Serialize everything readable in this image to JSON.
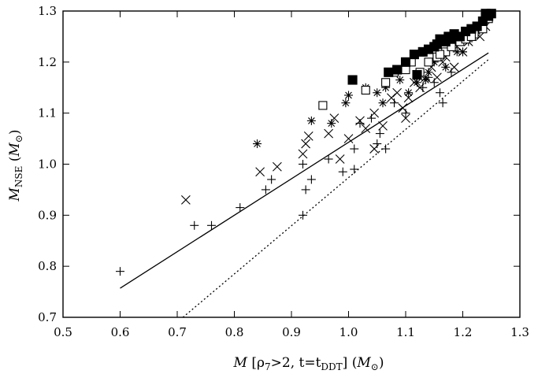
{
  "chart_data": {
    "type": "scatter",
    "xlabel": {
      "main": "M",
      "bracket_open": " [",
      "rho": "ρ",
      "rho_sub": "7",
      "cond": ">2, t=t",
      "t_sub": "DDT",
      "bracket_close": "] (",
      "unit": "M",
      "unit_sub": "⊙",
      "close": ")"
    },
    "ylabel": {
      "main": "M",
      "main_sub": "NSE",
      "open": " (",
      "unit": "M",
      "unit_sub": "⊙",
      "close": ")"
    },
    "xlim": [
      0.5,
      1.3
    ],
    "ylim": [
      0.7,
      1.3
    ],
    "xticks": [
      0.5,
      0.6,
      0.7,
      0.8,
      0.9,
      1.0,
      1.1,
      1.2,
      1.3
    ],
    "xtick_labels": [
      "0.5",
      "0.6",
      "0.7",
      "0.8",
      "0.9",
      "1.0",
      "1.1",
      "1.2",
      "1.3"
    ],
    "yticks": [
      0.7,
      0.8,
      0.9,
      1.0,
      1.1,
      1.2,
      1.3
    ],
    "ytick_labels": [
      "0.7",
      "0.8",
      "0.9",
      "1.0",
      "1.1",
      "1.2",
      "1.3"
    ],
    "grid": false,
    "series": [
      {
        "marker": "plus",
        "points": [
          [
            0.6,
            0.79
          ],
          [
            0.73,
            0.88
          ],
          [
            0.76,
            0.88
          ],
          [
            0.81,
            0.915
          ],
          [
            0.855,
            0.95
          ],
          [
            0.865,
            0.97
          ],
          [
            0.92,
            0.9
          ],
          [
            0.925,
            0.95
          ],
          [
            0.935,
            0.97
          ],
          [
            0.92,
            1.0
          ],
          [
            0.965,
            1.01
          ],
          [
            0.99,
            0.985
          ],
          [
            1.01,
            0.99
          ],
          [
            1.01,
            1.03
          ],
          [
            1.05,
            1.04
          ],
          [
            1.065,
            1.03
          ],
          [
            1.055,
            1.06
          ],
          [
            1.04,
            1.09
          ],
          [
            1.1,
            1.1
          ],
          [
            1.13,
            1.15
          ],
          [
            1.15,
            1.16
          ],
          [
            1.16,
            1.14
          ],
          [
            1.165,
            1.12
          ],
          [
            1.18,
            1.18
          ],
          [
            1.2,
            1.22
          ],
          [
            1.14,
            1.17
          ],
          [
            1.08,
            1.12
          ],
          [
            1.02,
            1.08
          ]
        ]
      },
      {
        "marker": "cross",
        "points": [
          [
            0.715,
            0.93
          ],
          [
            0.845,
            0.985
          ],
          [
            0.875,
            0.995
          ],
          [
            0.92,
            1.02
          ],
          [
            0.925,
            1.04
          ],
          [
            0.93,
            1.055
          ],
          [
            0.965,
            1.06
          ],
          [
            0.975,
            1.09
          ],
          [
            0.985,
            1.01
          ],
          [
            1.0,
            1.05
          ],
          [
            1.02,
            1.085
          ],
          [
            1.03,
            1.07
          ],
          [
            1.045,
            1.1
          ],
          [
            1.06,
            1.075
          ],
          [
            1.075,
            1.13
          ],
          [
            1.085,
            1.14
          ],
          [
            1.095,
            1.11
          ],
          [
            1.105,
            1.13
          ],
          [
            1.115,
            1.16
          ],
          [
            1.125,
            1.15
          ],
          [
            1.135,
            1.17
          ],
          [
            1.145,
            1.19
          ],
          [
            1.155,
            1.17
          ],
          [
            1.165,
            1.2
          ],
          [
            1.17,
            1.21
          ],
          [
            1.185,
            1.19
          ],
          [
            1.19,
            1.23
          ],
          [
            1.2,
            1.22
          ],
          [
            1.21,
            1.24
          ],
          [
            1.23,
            1.25
          ],
          [
            1.24,
            1.27
          ],
          [
            1.045,
            1.03
          ],
          [
            1.1,
            1.09
          ]
        ]
      },
      {
        "marker": "asterisk",
        "points": [
          [
            0.84,
            1.04
          ],
          [
            0.935,
            1.085
          ],
          [
            0.97,
            1.08
          ],
          [
            0.995,
            1.12
          ],
          [
            1.0,
            1.135
          ],
          [
            1.03,
            1.15
          ],
          [
            1.05,
            1.14
          ],
          [
            1.065,
            1.15
          ],
          [
            1.09,
            1.165
          ],
          [
            1.105,
            1.14
          ],
          [
            1.12,
            1.16
          ],
          [
            1.14,
            1.18
          ],
          [
            1.15,
            1.2
          ],
          [
            1.17,
            1.19
          ],
          [
            1.19,
            1.22
          ],
          [
            1.21,
            1.24
          ],
          [
            1.225,
            1.26
          ],
          [
            1.235,
            1.28
          ],
          [
            1.24,
            1.29
          ],
          [
            1.2,
            1.22
          ],
          [
            1.135,
            1.165
          ],
          [
            1.06,
            1.12
          ]
        ]
      },
      {
        "marker": "open-square",
        "points": [
          [
            0.955,
            1.115
          ],
          [
            1.03,
            1.145
          ],
          [
            1.065,
            1.16
          ],
          [
            1.08,
            1.18
          ],
          [
            1.1,
            1.185
          ],
          [
            1.125,
            1.18
          ],
          [
            1.14,
            1.2
          ],
          [
            1.155,
            1.21
          ],
          [
            1.17,
            1.22
          ],
          [
            1.18,
            1.23
          ],
          [
            1.195,
            1.24
          ],
          [
            1.205,
            1.245
          ],
          [
            1.22,
            1.255
          ],
          [
            1.235,
            1.265
          ],
          [
            1.245,
            1.285
          ],
          [
            1.215,
            1.25
          ],
          [
            1.16,
            1.215
          ],
          [
            1.11,
            1.2
          ]
        ]
      },
      {
        "marker": "filled-square",
        "points": [
          [
            1.007,
            1.165
          ],
          [
            1.07,
            1.18
          ],
          [
            1.085,
            1.185
          ],
          [
            1.1,
            1.2
          ],
          [
            1.115,
            1.215
          ],
          [
            1.12,
            1.175
          ],
          [
            1.13,
            1.22
          ],
          [
            1.14,
            1.225
          ],
          [
            1.15,
            1.23
          ],
          [
            1.16,
            1.245
          ],
          [
            1.17,
            1.24
          ],
          [
            1.175,
            1.25
          ],
          [
            1.185,
            1.255
          ],
          [
            1.195,
            1.25
          ],
          [
            1.205,
            1.26
          ],
          [
            1.215,
            1.265
          ],
          [
            1.225,
            1.27
          ],
          [
            1.235,
            1.28
          ],
          [
            1.245,
            1.29
          ],
          [
            1.25,
            1.295
          ],
          [
            1.24,
            1.295
          ],
          [
            1.18,
            1.245
          ],
          [
            1.155,
            1.235
          ]
        ]
      },
      {
        "marker": "line-solid",
        "points": [
          [
            0.6,
            0.757
          ],
          [
            1.245,
            1.218
          ]
        ]
      },
      {
        "marker": "line-dotted",
        "points": [
          [
            0.71,
            0.7
          ],
          [
            1.245,
            1.205
          ]
        ]
      }
    ]
  }
}
